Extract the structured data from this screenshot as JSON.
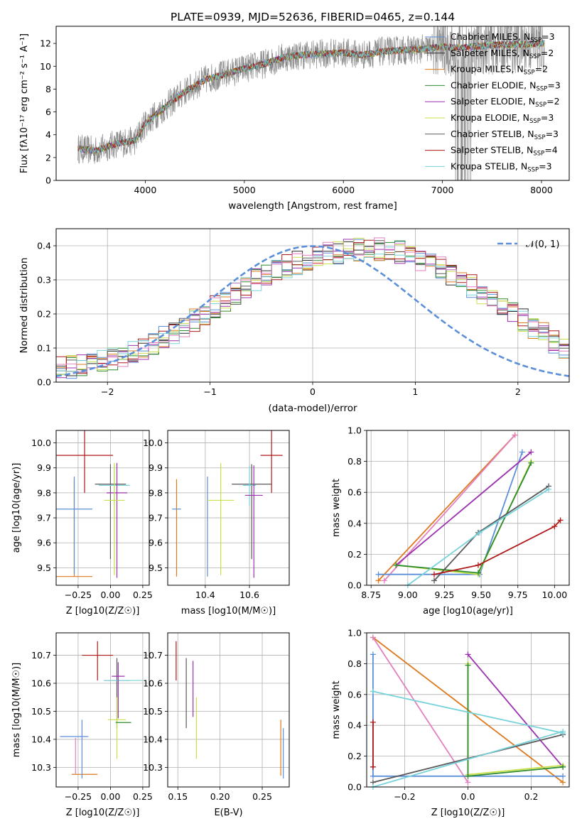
{
  "figure": {
    "title": "PLATE=0939, MJD=52636, FIBERID=0465, z=0.144"
  },
  "series_colors": {
    "Chabrier MILES": "#5b8fd9",
    "Salpeter MILES": "#2a2a2a",
    "Kroupa MILES": "#dd7a1e",
    "Chabrier ELODIE": "#2e8b2e",
    "Salpeter ELODIE": "#9b30b0",
    "Kroupa ELODIE": "#c8e04a",
    "Chabrier STELIB": "#5a5a5a",
    "Salpeter STELIB": "#b01818",
    "Kroupa STELIB": "#78d2da",
    "pink": "#e27fbf",
    "normal_curve": "#5b8fd9"
  },
  "chart_data": [
    {
      "type": "line",
      "panel": "spectrum",
      "title": "PLATE=0939, MJD=52636, FIBERID=0465, z=0.144",
      "xlabel": "wavelength [Angstrom, rest frame]",
      "ylabel": "Flux [fλ10⁻¹⁷ erg cm⁻² s⁻¹ A⁻¹]",
      "xlim": [
        3100,
        8280
      ],
      "ylim": [
        0,
        13.5
      ],
      "xticks": [
        4000,
        5000,
        6000,
        7000,
        8000
      ],
      "yticks": [
        0,
        2,
        4,
        6,
        8,
        10,
        12
      ],
      "grid": false,
      "legend_position": "top-right",
      "legend": [
        {
          "label": "Chabrier MILES, N",
          "sub": "SSP",
          "tail": "=3",
          "color": "#5b8fd9"
        },
        {
          "label": "Salpeter MILES, N",
          "sub": "SSP",
          "tail": "=2",
          "color": "#2a2a2a"
        },
        {
          "label": "Kroupa MILES, N",
          "sub": "SSP",
          "tail": "=2",
          "color": "#dd7a1e"
        },
        {
          "label": "Chabrier ELODIE, N",
          "sub": "SSP",
          "tail": "=3",
          "color": "#2e8b2e"
        },
        {
          "label": "Salpeter ELODIE, N",
          "sub": "SSP",
          "tail": "=2",
          "color": "#9b30b0"
        },
        {
          "label": "Kroupa ELODIE, N",
          "sub": "SSP",
          "tail": "=3",
          "color": "#c8e04a"
        },
        {
          "label": "Chabrier STELIB, N",
          "sub": "SSP",
          "tail": "=3",
          "color": "#5a5a5a"
        },
        {
          "label": "Salpeter STELIB, N",
          "sub": "SSP",
          "tail": "=4",
          "color": "#b01818"
        },
        {
          "label": "Kroupa STELIB, N",
          "sub": "SSP",
          "tail": "=3",
          "color": "#78d2da"
        }
      ],
      "continuum": {
        "x": [
          3300,
          3500,
          3700,
          3900,
          4000,
          4200,
          4400,
          4600,
          4800,
          5000,
          5200,
          5400,
          5600,
          5800,
          6000,
          6200,
          6400,
          6600,
          6800,
          7000,
          7200,
          7400,
          7600,
          7800,
          8000
        ],
        "y": [
          2.8,
          2.6,
          3.2,
          3.5,
          5.0,
          6.4,
          7.8,
          8.8,
          9.3,
          9.8,
          10.2,
          10.8,
          11.0,
          11.1,
          11.2,
          11.0,
          11.3,
          11.4,
          11.5,
          11.7,
          11.6,
          11.8,
          11.9,
          11.9,
          12.0
        ]
      }
    },
    {
      "type": "line",
      "panel": "residual histogram",
      "xlabel": "(data-model)/error",
      "ylabel": "Normed distribution",
      "xlim": [
        -2.5,
        2.5
      ],
      "ylim": [
        0,
        0.45
      ],
      "xticks": [
        -2,
        -1,
        0,
        1,
        2
      ],
      "yticks": [
        0.0,
        0.1,
        0.2,
        0.3,
        0.4
      ],
      "grid": true,
      "legend_position": "top-right",
      "legend": [
        {
          "label": "𝒩(0, 1)",
          "color": "#5b8fd9"
        }
      ],
      "bin_width": 0.1,
      "bins_from": -2.5,
      "histogram_envelope": [
        0.04,
        0.045,
        0.05,
        0.055,
        0.06,
        0.07,
        0.078,
        0.09,
        0.1,
        0.115,
        0.13,
        0.145,
        0.16,
        0.18,
        0.2,
        0.22,
        0.24,
        0.26,
        0.28,
        0.3,
        0.31,
        0.325,
        0.34,
        0.35,
        0.36,
        0.37,
        0.375,
        0.38,
        0.385,
        0.39,
        0.39,
        0.39,
        0.385,
        0.38,
        0.37,
        0.36,
        0.35,
        0.335,
        0.32,
        0.3,
        0.28,
        0.26,
        0.24,
        0.22,
        0.2,
        0.18,
        0.16,
        0.14,
        0.12,
        0.1
      ]
    },
    {
      "type": "scatter",
      "panel": "age vs Z",
      "xlabel": "Z [log10(Z/Z☉)]",
      "ylabel": "age  [log10(age/yr)]",
      "xlim": [
        -0.42,
        0.3
      ],
      "ylim": [
        9.43,
        10.05
      ],
      "xticks": [
        -0.25,
        0.0,
        0.25
      ],
      "xtick_labels": [
        "−0.25",
        "0.00",
        "0.25"
      ],
      "yticks": [
        9.5,
        9.6,
        9.7,
        9.8,
        9.9,
        10.0
      ],
      "grid": true,
      "errorbars": [
        {
          "x": -0.2,
          "y": 9.95,
          "xerr": 0.22,
          "yerr": [
            0.15,
            0.1
          ],
          "color": "#b01818"
        },
        {
          "x": -0.28,
          "y": 9.465,
          "xerr": 0.14,
          "yerr": [
            0.0,
            0.39
          ],
          "color": "#dd7a1e"
        },
        {
          "x": -0.28,
          "y": 9.735,
          "xerr": 0.14,
          "yerr": [
            0.26,
            0.13
          ],
          "color": "#5b8fd9"
        },
        {
          "x": 0.0,
          "y": 9.835,
          "xerr": 0.12,
          "yerr": [
            0.3,
            0.08
          ],
          "color": "#5a5a5a"
        },
        {
          "x": 0.03,
          "y": 9.83,
          "xerr": 0.12,
          "yerr": [
            0.08,
            0.08
          ],
          "color": "#78d2da"
        },
        {
          "x": 0.05,
          "y": 9.8,
          "xerr": 0.08,
          "yerr": [
            0.34,
            0.12
          ],
          "color": "#9b30b0"
        },
        {
          "x": 0.03,
          "y": 9.77,
          "xerr": 0.08,
          "yerr": [
            0.3,
            0.15
          ],
          "color": "#c8e04a"
        }
      ]
    },
    {
      "type": "scatter",
      "panel": "age vs mass",
      "xlabel": "mass [log10(M/M☉)]",
      "xlim": [
        10.23,
        10.78
      ],
      "ylim": [
        9.43,
        10.05
      ],
      "xticks": [
        10.4,
        10.6
      ],
      "yticks": [
        9.5,
        9.6,
        9.7,
        9.8,
        9.9,
        10.0
      ],
      "grid": true,
      "errorbars": [
        {
          "x": 10.7,
          "y": 9.95,
          "xerr": 0.05,
          "yerr": [
            0.15,
            0.1
          ],
          "color": "#b01818"
        },
        {
          "x": 10.27,
          "y": 9.465,
          "xerr": 0.0,
          "yerr": [
            0.0,
            0.39
          ],
          "color": "#dd7a1e"
        },
        {
          "x": 10.27,
          "y": 9.735,
          "xerr": 0.02,
          "yerr": [
            0.0,
            0.0
          ],
          "color": "#5b8fd9"
        },
        {
          "x": 10.41,
          "y": 9.735,
          "xerr": 0.0,
          "yerr": [
            0.27,
            0.13
          ],
          "color": "#5b8fd9"
        },
        {
          "x": 10.61,
          "y": 9.835,
          "xerr": 0.09,
          "yerr": [
            0.3,
            0.08
          ],
          "color": "#5a5a5a"
        },
        {
          "x": 10.6,
          "y": 9.83,
          "xerr": 0.03,
          "yerr": [
            0.08,
            0.08
          ],
          "color": "#78d2da"
        },
        {
          "x": 10.62,
          "y": 9.79,
          "xerr": 0.04,
          "yerr": [
            0.33,
            0.12
          ],
          "color": "#9b30b0"
        },
        {
          "x": 10.47,
          "y": 9.77,
          "xerr": 0.06,
          "yerr": [
            0.3,
            0.15
          ],
          "color": "#c8e04a"
        }
      ]
    },
    {
      "type": "line",
      "panel": "mass weight vs age",
      "xlabel": "age  [log10(age/yr)]",
      "ylabel": "mass weight",
      "xlim": [
        8.72,
        10.1
      ],
      "ylim": [
        0,
        1
      ],
      "xticks": [
        8.75,
        9.0,
        9.25,
        9.5,
        9.75,
        10.0
      ],
      "yticks": [
        0.0,
        0.2,
        0.4,
        0.6,
        0.8,
        1.0
      ],
      "grid": true,
      "series": [
        {
          "color": "#dd7a1e",
          "x": [
            8.8,
            9.73
          ],
          "y": [
            0.03,
            0.97
          ]
        },
        {
          "color": "#e27fbf",
          "x": [
            8.84,
            9.73
          ],
          "y": [
            0.03,
            0.97
          ]
        },
        {
          "color": "#5b8fd9",
          "x": [
            8.8,
            9.49,
            9.78
          ],
          "y": [
            0.07,
            0.07,
            0.86
          ]
        },
        {
          "color": "#9b30b0",
          "x": [
            8.92,
            9.84
          ],
          "y": [
            0.13,
            0.86
          ]
        },
        {
          "color": "#c8e04a",
          "x": [
            8.92,
            9.48,
            9.84
          ],
          "y": [
            0.13,
            0.07,
            0.8
          ]
        },
        {
          "color": "#2e8b2e",
          "x": [
            8.92,
            9.48,
            9.84
          ],
          "y": [
            0.13,
            0.08,
            0.79
          ]
        },
        {
          "color": "#5a5a5a",
          "x": [
            9.18,
            9.48,
            9.96
          ],
          "y": [
            0.03,
            0.34,
            0.64
          ]
        },
        {
          "color": "#78d2da",
          "x": [
            9.0,
            9.49,
            9.96
          ],
          "y": [
            0.0,
            0.34,
            0.62
          ]
        },
        {
          "color": "#b01818",
          "x": [
            9.18,
            9.48,
            10.0,
            10.04
          ],
          "y": [
            0.07,
            0.13,
            0.38,
            0.42
          ]
        }
      ]
    },
    {
      "type": "scatter",
      "panel": "mass vs Z",
      "xlabel": "Z [log10(Z/Z☉)]",
      "ylabel": "mass [log10(M/M☉)]",
      "xlim": [
        -0.42,
        0.3
      ],
      "ylim": [
        10.23,
        10.78
      ],
      "xticks": [
        -0.25,
        0.0,
        0.25
      ],
      "xtick_labels": [
        "−0.25",
        "0.00",
        "0.25"
      ],
      "yticks": [
        10.3,
        10.4,
        10.5,
        10.6,
        10.7
      ],
      "grid": true,
      "errorbars": [
        {
          "x": -0.1,
          "y": 10.7,
          "xerr": 0.12,
          "yerr": [
            0.09,
            0.05
          ],
          "color": "#b01818"
        },
        {
          "x": -0.2,
          "y": 10.275,
          "xerr": 0.1,
          "yerr": [
            0.0,
            0.0
          ],
          "color": "#dd7a1e"
        },
        {
          "x": -0.27,
          "y": 10.275,
          "xerr": 0.0,
          "yerr": [
            0.0,
            0.13
          ],
          "color": "#e27fbf"
        },
        {
          "x": -0.28,
          "y": 10.41,
          "xerr": 0.11,
          "yerr": [
            0.0,
            0.0
          ],
          "color": "#5b8fd9"
        },
        {
          "x": -0.22,
          "y": 10.41,
          "xerr": 0.0,
          "yerr": [
            0.15,
            0.06
          ],
          "color": "#5b8fd9"
        },
        {
          "x": 0.05,
          "y": 10.61,
          "xerr": 0.1,
          "yerr": [
            0.17,
            0.08
          ],
          "color": "#5a5a5a"
        },
        {
          "x": 0.1,
          "y": 10.61,
          "xerr": 0.15,
          "yerr": [
            0.0,
            0.0
          ],
          "color": "#78d2da"
        },
        {
          "x": 0.06,
          "y": 10.625,
          "xerr": 0.05,
          "yerr": [
            0.15,
            0.05
          ],
          "color": "#9b30b0"
        },
        {
          "x": 0.05,
          "y": 10.47,
          "xerr": 0.07,
          "yerr": [
            0.14,
            0.08
          ],
          "color": "#c8e04a"
        },
        {
          "x": 0.1,
          "y": 10.46,
          "xerr": 0.06,
          "yerr": [
            0.0,
            0.0
          ],
          "color": "#2e8b2e"
        }
      ]
    },
    {
      "type": "scatter",
      "panel": "mass vs E(B-V)",
      "xlabel": "E(B-V)",
      "xlim": [
        0.138,
        0.282
      ],
      "ylim": [
        10.23,
        10.78
      ],
      "xticks": [
        0.15,
        0.2,
        0.25
      ],
      "yticks": [
        10.3,
        10.4,
        10.5,
        10.6,
        10.7
      ],
      "grid": true,
      "errorbars": [
        {
          "x": 0.148,
          "y": 10.71,
          "xerr": 0.0,
          "yerr": [
            0.1,
            0.04
          ],
          "color": "#b01818"
        },
        {
          "x": 0.16,
          "y": 10.61,
          "xerr": 0.0,
          "yerr": [
            0.17,
            0.08
          ],
          "color": "#5a5a5a"
        },
        {
          "x": 0.168,
          "y": 10.61,
          "xerr": 0.0,
          "yerr": [
            0.13,
            0.07
          ],
          "color": "#9b30b0"
        },
        {
          "x": 0.172,
          "y": 10.44,
          "xerr": 0.0,
          "yerr": [
            0.11,
            0.11
          ],
          "color": "#c8e04a"
        },
        {
          "x": 0.272,
          "y": 10.38,
          "xerr": 0.0,
          "yerr": [
            0.11,
            0.09
          ],
          "color": "#dd7a1e"
        },
        {
          "x": 0.275,
          "y": 10.36,
          "xerr": 0.0,
          "yerr": [
            0.1,
            0.08
          ],
          "color": "#5b8fd9"
        }
      ]
    },
    {
      "type": "line",
      "panel": "mass weight vs Z",
      "xlabel": "Z [log10(Z/Z☉)]",
      "ylabel": "mass weight",
      "xlim": [
        -0.32,
        0.32
      ],
      "ylim": [
        0,
        1
      ],
      "xticks": [
        -0.2,
        0.0,
        0.2
      ],
      "xtick_labels": [
        "−0.2",
        "0.0",
        "0.2"
      ],
      "yticks": [
        0.0,
        0.2,
        0.4,
        0.6,
        0.8,
        1.0
      ],
      "grid": true,
      "series": [
        {
          "color": "#dd7a1e",
          "x": [
            -0.3,
            0.3
          ],
          "y": [
            0.97,
            0.03
          ]
        },
        {
          "color": "#e27fbf",
          "x": [
            -0.3,
            0.0
          ],
          "y": [
            0.97,
            0.03
          ]
        },
        {
          "color": "#5b8fd9",
          "x": [
            -0.3,
            -0.3,
            0.3
          ],
          "y": [
            0.86,
            0.07,
            0.07
          ]
        },
        {
          "color": "#9b30b0",
          "x": [
            0.0,
            0.3
          ],
          "y": [
            0.86,
            0.13
          ]
        },
        {
          "color": "#c8e04a",
          "x": [
            0.0,
            0.0,
            0.3
          ],
          "y": [
            0.8,
            0.08,
            0.14
          ]
        },
        {
          "color": "#2e8b2e",
          "x": [
            0.0,
            0.0,
            0.3
          ],
          "y": [
            0.79,
            0.07,
            0.13
          ]
        },
        {
          "color": "#5a5a5a",
          "x": [
            -0.3,
            0.3
          ],
          "y": [
            0.03,
            0.34
          ]
        },
        {
          "color": "#78d2da",
          "x": [
            -0.3,
            0.3
          ],
          "y": [
            0.62,
            0.35
          ]
        },
        {
          "color": "#78d2da",
          "x": [
            -0.3,
            0.3
          ],
          "y": [
            0.0,
            0.36
          ]
        },
        {
          "color": "#b01818",
          "x": [
            -0.3,
            -0.3
          ],
          "y": [
            0.13,
            0.42
          ]
        }
      ]
    }
  ]
}
